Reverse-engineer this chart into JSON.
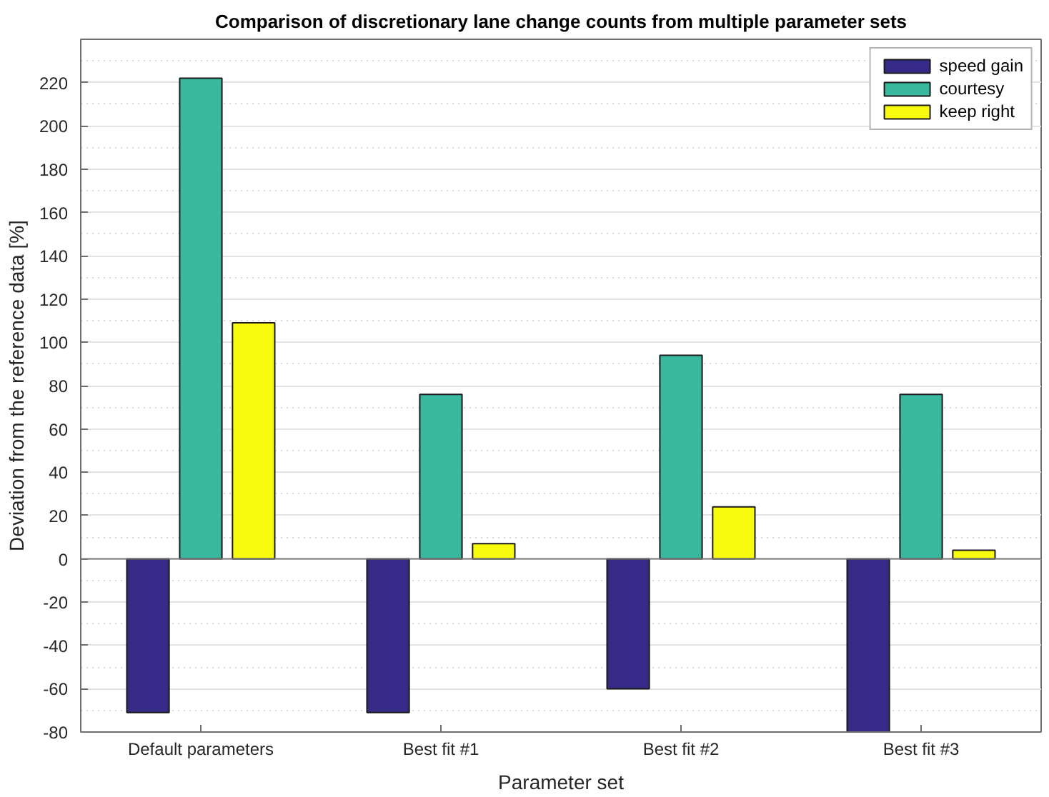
{
  "chart_data": {
    "type": "bar",
    "title": "Comparison of discretionary lane change counts from multiple parameter sets",
    "xlabel": "Parameter set",
    "ylabel": "Deviation from the reference data [%]",
    "categories": [
      "Default parameters",
      "Best fit #1",
      "Best fit #2",
      "Best fit #3"
    ],
    "series": [
      {
        "name": "speed gain",
        "color": "#352a87",
        "values": [
          -71,
          -71,
          -60,
          -80
        ]
      },
      {
        "name": "courtesy",
        "color": "#38b99e",
        "values": [
          222,
          76,
          94,
          76
        ]
      },
      {
        "name": "keep right",
        "color": "#f9fb0e",
        "values": [
          109,
          7,
          24,
          4
        ]
      }
    ],
    "ylim": [
      -80,
      240
    ],
    "yticks": [
      -80,
      -60,
      -40,
      -20,
      0,
      20,
      40,
      60,
      80,
      100,
      120,
      140,
      160,
      180,
      200,
      220
    ],
    "grid": "y",
    "legend": "top right"
  }
}
